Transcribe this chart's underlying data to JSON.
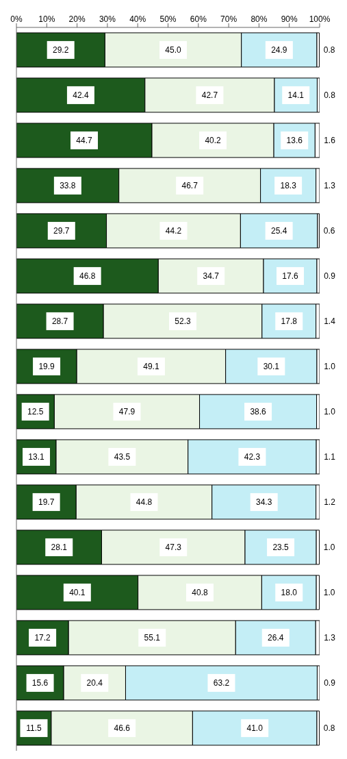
{
  "chart_data": {
    "type": "bar",
    "orientation": "horizontal",
    "stacked": true,
    "categories": [
      null,
      null,
      null,
      null,
      null,
      null,
      null,
      null,
      null,
      null,
      null,
      null,
      null,
      null,
      null,
      null
    ],
    "xlim": [
      0,
      100
    ],
    "xticks": [
      {
        "value": 0,
        "label": "0%"
      },
      {
        "value": 10,
        "label": "10%"
      },
      {
        "value": 20,
        "label": "20%"
      },
      {
        "value": 30,
        "label": "30%"
      },
      {
        "value": 40,
        "label": "40%"
      },
      {
        "value": 50,
        "label": "50%"
      },
      {
        "value": 60,
        "label": "60%"
      },
      {
        "value": 70,
        "label": "70%"
      },
      {
        "value": 80,
        "label": "80%"
      },
      {
        "value": 90,
        "label": "90%"
      },
      {
        "value": 100,
        "label": "100%"
      }
    ],
    "grid": false,
    "legend": false,
    "series": [
      {
        "color": "#1d5a1d",
        "values": [
          29.2,
          42.4,
          44.7,
          33.8,
          29.7,
          46.8,
          28.7,
          19.9,
          12.5,
          13.1,
          19.7,
          28.1,
          40.1,
          17.2,
          15.6,
          11.5
        ],
        "value_labels": [
          "29.2",
          "42.4",
          "44.7",
          "33.8",
          "29.7",
          "46.8",
          "28.7",
          "19.9",
          "12.5",
          "13.1",
          "19.7",
          "28.1",
          "40.1",
          "17.2",
          "15.6",
          "11.5"
        ]
      },
      {
        "color": "#eaf5e4",
        "values": [
          45.0,
          42.7,
          40.2,
          46.7,
          44.2,
          34.7,
          52.3,
          49.1,
          47.9,
          43.5,
          44.8,
          47.3,
          40.8,
          55.1,
          20.4,
          46.6
        ],
        "value_labels": [
          "45.0",
          "42.7",
          "40.2",
          "46.7",
          "44.2",
          "34.7",
          "52.3",
          "49.1",
          "47.9",
          "43.5",
          "44.8",
          "47.3",
          "40.8",
          "55.1",
          "20.4",
          "46.6"
        ]
      },
      {
        "color": "#c4eef6",
        "values": [
          24.9,
          14.1,
          13.6,
          18.3,
          25.4,
          17.6,
          17.8,
          30.1,
          38.6,
          42.3,
          34.3,
          23.5,
          18.0,
          26.4,
          63.2,
          41.0
        ],
        "value_labels": [
          "24.9",
          "14.1",
          "13.6",
          "18.3",
          "25.4",
          "17.6",
          "17.8",
          "30.1",
          "38.6",
          "42.3",
          "34.3",
          "23.5",
          "18.0",
          "26.4",
          "63.2",
          "41.0"
        ]
      },
      {
        "color": "#ffffff",
        "values": [
          0.8,
          0.8,
          1.6,
          1.3,
          0.6,
          0.9,
          1.4,
          1.0,
          1.0,
          1.1,
          1.2,
          1.0,
          1.0,
          1.3,
          0.9,
          0.8
        ],
        "value_labels": [
          "0.8",
          "0.8",
          "1.6",
          "1.3",
          "0.6",
          "0.9",
          "1.4",
          "1.0",
          "1.0",
          "1.1",
          "1.2",
          "1.0",
          "1.0",
          "1.3",
          "0.9",
          "0.8"
        ]
      }
    ]
  }
}
